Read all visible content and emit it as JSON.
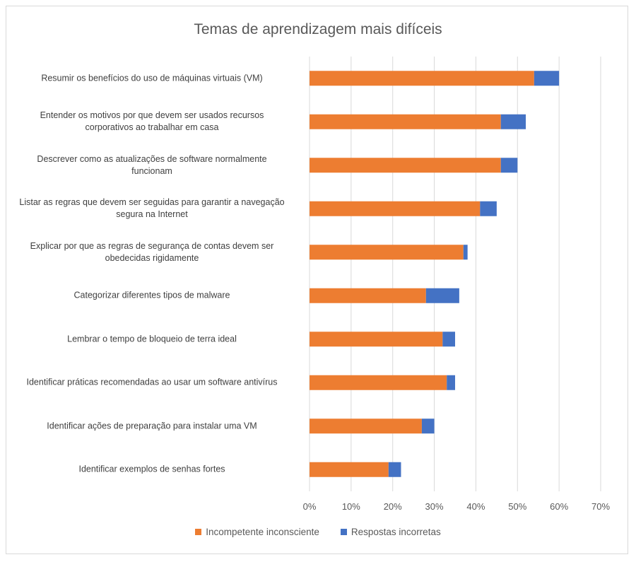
{
  "chart_data": {
    "type": "bar",
    "orientation": "horizontal",
    "stacked": true,
    "title": "Temas de aprendizagem mais difíceis",
    "xlabel": "",
    "ylabel": "",
    "xlim": [
      0,
      70
    ],
    "x_ticks": [
      "0%",
      "10%",
      "20%",
      "30%",
      "40%",
      "50%",
      "60%",
      "70%"
    ],
    "grid": true,
    "legend_position": "bottom",
    "categories": [
      [
        "Resumir os benefícios do uso de máquinas virtuais (VM)"
      ],
      [
        "Entender os motivos por que devem ser usados recursos",
        "corporativos ao trabalhar em casa"
      ],
      [
        "Descrever como as atualizações de software normalmente",
        "funcionam"
      ],
      [
        "Listar as regras que devem ser seguidas para garantir a navegação",
        "segura na Internet"
      ],
      [
        "Explicar por que as regras de segurança de contas devem ser",
        "obedecidas rigidamente"
      ],
      [
        "Categorizar diferentes tipos de malware"
      ],
      [
        "Lembrar o tempo de bloqueio de terra ideal"
      ],
      [
        "Identificar práticas recomendadas ao usar um software antivírus"
      ],
      [
        "Identificar ações de preparação para instalar uma VM"
      ],
      [
        "Identificar exemplos de senhas fortes"
      ]
    ],
    "series": [
      {
        "name": "Incompetente inconsciente",
        "color": "#ED7D31",
        "values": [
          54,
          46,
          46,
          41,
          37,
          28,
          32,
          33,
          27,
          19
        ]
      },
      {
        "name": "Respostas incorretas",
        "color": "#4472C4",
        "values": [
          6,
          6,
          4,
          4,
          1,
          8,
          3,
          2,
          3,
          3
        ]
      }
    ]
  }
}
